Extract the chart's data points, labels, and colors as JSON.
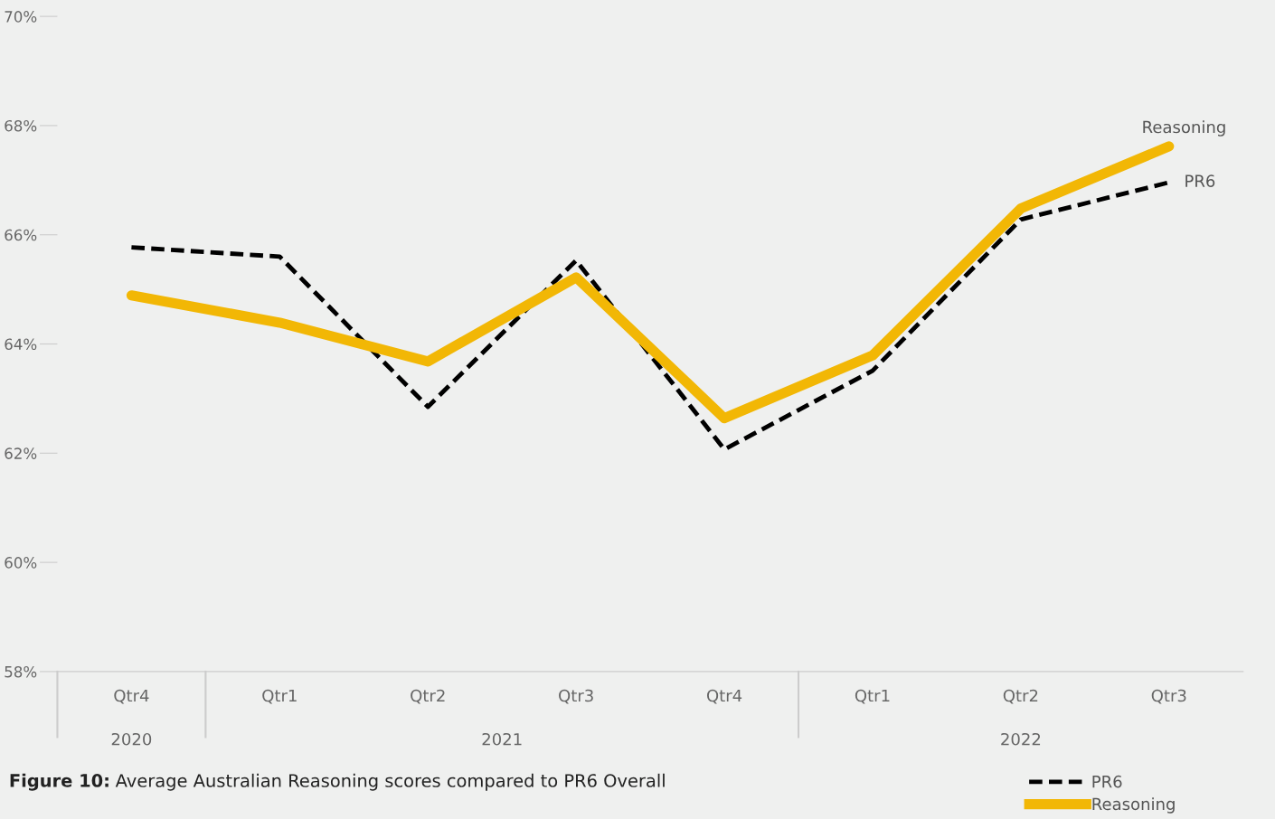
{
  "chart_data": {
    "type": "line",
    "title": "Figure 10: Average Australian Reasoning scores compared to PR6 Overall",
    "categories": [
      "Qtr4",
      "Qtr1",
      "Qtr2",
      "Qtr3",
      "Qtr4",
      "Qtr1",
      "Qtr2",
      "Qtr3"
    ],
    "annotations": [
      "2020",
      "2021",
      "2022"
    ],
    "series": [
      {
        "name": "PR6",
        "color": "#000000",
        "line_style": "dashed",
        "values": [
          65.77,
          65.6,
          62.85,
          65.53,
          62.07,
          63.51,
          66.28,
          66.96
        ]
      },
      {
        "name": "Reasoning",
        "color": "#f2b705",
        "line_style": "solid",
        "values": [
          64.89,
          64.39,
          63.68,
          65.22,
          62.64,
          63.79,
          66.48,
          67.62
        ]
      }
    ],
    "ylim": [
      58,
      70
    ],
    "yticks": [
      {
        "value": 58,
        "label": "58%"
      },
      {
        "value": 60,
        "label": "60%"
      },
      {
        "value": 62,
        "label": "62%"
      },
      {
        "value": 64,
        "label": "64%"
      },
      {
        "value": 66,
        "label": "66%"
      },
      {
        "value": 68,
        "label": "68%"
      },
      {
        "value": 70,
        "label": "70%"
      }
    ],
    "grid": false,
    "legend": "bottom right",
    "marker": "none"
  }
}
